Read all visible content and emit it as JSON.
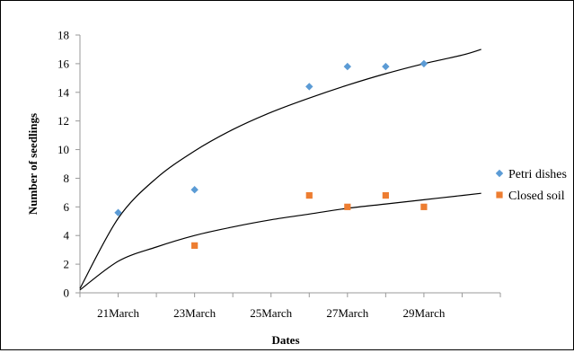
{
  "chart_data": {
    "type": "scatter",
    "title": "",
    "xlabel": "Dates",
    "ylabel": "Number of seedlings",
    "ylim": [
      0,
      18
    ],
    "ytick_step": 2,
    "x_axis": {
      "type": "date",
      "range": [
        "2000-03-20",
        "2000-03-31"
      ],
      "ticks": [
        "2000-03-20",
        "2000-03-21",
        "2000-03-22",
        "2000-03-23",
        "2000-03-24",
        "2000-03-25",
        "2000-03-26",
        "2000-03-27",
        "2000-03-28",
        "2000-03-29",
        "2000-03-30",
        "2000-03-31"
      ],
      "labels": [
        {
          "x": "2000-03-21",
          "text": "21March"
        },
        {
          "x": "2000-03-23",
          "text": "23March"
        },
        {
          "x": "2000-03-25",
          "text": "25March"
        },
        {
          "x": "2000-03-27",
          "text": "27March"
        },
        {
          "x": "2000-03-29",
          "text": "29March"
        }
      ]
    },
    "grid": false,
    "legend_position": "right",
    "series": [
      {
        "name": "Petri dishes",
        "color": "#5b9bd5",
        "marker": "diamond",
        "points": [
          {
            "x": "2000-03-21",
            "y": 5.6
          },
          {
            "x": "2000-03-23",
            "y": 7.2
          },
          {
            "x": "2000-03-26",
            "y": 14.4
          },
          {
            "x": "2000-03-27",
            "y": 15.8
          },
          {
            "x": "2000-03-28",
            "y": 15.8
          },
          {
            "x": "2000-03-29",
            "y": 16.0
          }
        ],
        "trendline": {
          "type": "logarithmic",
          "color": "#000000",
          "points": [
            {
              "x": "2000-03-20",
              "y": 0.3
            },
            {
              "x": "2000-03-21",
              "y": 5.2
            },
            {
              "x": "2000-03-22",
              "y": 8.0
            },
            {
              "x": "2000-03-23",
              "y": 9.9
            },
            {
              "x": "2000-03-24",
              "y": 11.4
            },
            {
              "x": "2000-03-25",
              "y": 12.6
            },
            {
              "x": "2000-03-26",
              "y": 13.6
            },
            {
              "x": "2000-03-27",
              "y": 14.5
            },
            {
              "x": "2000-03-28",
              "y": 15.3
            },
            {
              "x": "2000-03-29",
              "y": 16.0
            },
            {
              "x": "2000-03-30",
              "y": 16.6
            },
            {
              "x": "2000-03-30.5",
              "y": 17.0
            }
          ]
        }
      },
      {
        "name": "Closed soil",
        "color": "#ed7d31",
        "marker": "square",
        "points": [
          {
            "x": "2000-03-23",
            "y": 3.3
          },
          {
            "x": "2000-03-26",
            "y": 6.8
          },
          {
            "x": "2000-03-27",
            "y": 6.0
          },
          {
            "x": "2000-03-28",
            "y": 6.8
          },
          {
            "x": "2000-03-29",
            "y": 6.0
          }
        ],
        "trendline": {
          "type": "logarithmic",
          "color": "#000000",
          "points": [
            {
              "x": "2000-03-20",
              "y": 0.2
            },
            {
              "x": "2000-03-21",
              "y": 2.2
            },
            {
              "x": "2000-03-22",
              "y": 3.2
            },
            {
              "x": "2000-03-23",
              "y": 4.0
            },
            {
              "x": "2000-03-24",
              "y": 4.6
            },
            {
              "x": "2000-03-25",
              "y": 5.1
            },
            {
              "x": "2000-03-26",
              "y": 5.5
            },
            {
              "x": "2000-03-27",
              "y": 5.9
            },
            {
              "x": "2000-03-28",
              "y": 6.2
            },
            {
              "x": "2000-03-29",
              "y": 6.5
            },
            {
              "x": "2000-03-30",
              "y": 6.8
            },
            {
              "x": "2000-03-30.5",
              "y": 6.95
            }
          ]
        }
      }
    ]
  }
}
